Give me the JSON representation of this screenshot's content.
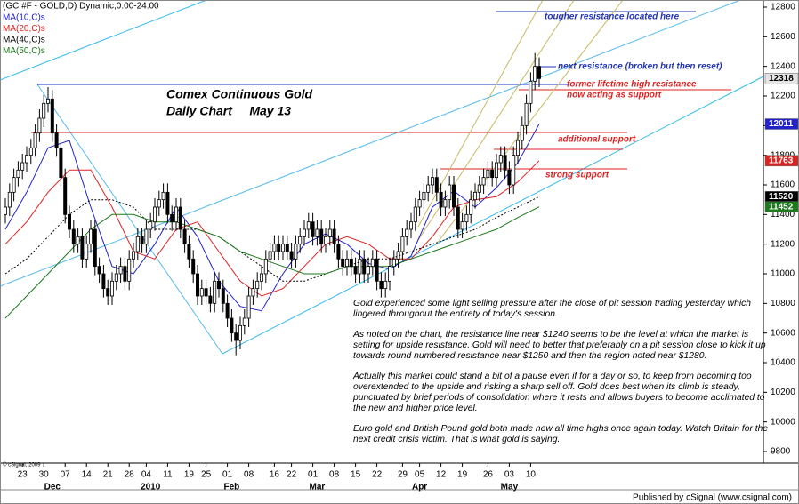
{
  "chart_data": {
    "type": "candlestick",
    "header": "(GC #F - GOLD,D) Dynamic,0:00-24:00",
    "title": "Comex Continuous Gold",
    "subtitle": "Daily Chart     May 13",
    "categories": [
      null,
      null,
      null,
      null,
      "23",
      null,
      null,
      null,
      null,
      "30",
      null,
      null,
      null,
      null,
      "07",
      null,
      null,
      null,
      null,
      "14",
      null,
      null,
      null,
      null,
      "21",
      null,
      null,
      null,
      null,
      "28",
      null,
      null,
      null,
      "04",
      null,
      null,
      null,
      null,
      "11",
      null,
      null,
      null,
      null,
      "19",
      null,
      null,
      null,
      "25",
      null,
      null,
      null,
      null,
      "01",
      null,
      null,
      null,
      null,
      "08",
      null,
      null,
      null,
      null,
      null,
      "16",
      null,
      null,
      null,
      "22",
      null,
      null,
      null,
      null,
      "01",
      null,
      null,
      null,
      null,
      "08",
      null,
      null,
      null,
      null,
      "15",
      null,
      null,
      null,
      null,
      "22",
      null,
      null,
      null,
      null,
      null,
      "29",
      null,
      null,
      null,
      "05",
      null,
      null,
      null,
      null,
      "12",
      null,
      null,
      null,
      null,
      "19",
      null,
      null,
      null,
      null,
      null,
      "26",
      null,
      null,
      null,
      null,
      "03",
      null,
      null,
      null,
      null,
      "10",
      null,
      null
    ],
    "month_labels": [
      null,
      null,
      null,
      null,
      null,
      null,
      null,
      null,
      null,
      null,
      null,
      "Dec",
      null,
      null,
      null,
      null,
      null,
      null,
      null,
      null,
      null,
      null,
      null,
      null,
      null,
      null,
      null,
      null,
      null,
      null,
      null,
      null,
      null,
      null,
      "2010",
      null,
      null,
      null,
      null,
      null,
      null,
      null,
      null,
      null,
      null,
      null,
      null,
      null,
      null,
      null,
      null,
      null,
      null,
      "Feb",
      null,
      null,
      null,
      null,
      null,
      null,
      null,
      null,
      null,
      null,
      null,
      null,
      null,
      null,
      null,
      null,
      null,
      null,
      null,
      "Mar",
      null,
      null,
      null,
      null,
      null,
      null,
      null,
      null,
      null,
      null,
      null,
      null,
      null,
      null,
      null,
      null,
      null,
      null,
      null,
      null,
      null,
      null,
      null,
      "Apr",
      null,
      null,
      null,
      null,
      null,
      null,
      null,
      null,
      null,
      null,
      null,
      null,
      null,
      null,
      null,
      null,
      null,
      null,
      null,
      null,
      "May",
      null,
      null,
      null,
      null,
      null,
      null,
      null
    ],
    "open": [
      11400,
      11450,
      11550,
      11650,
      11700,
      11750,
      11800,
      11850,
      11950,
      12050,
      12150,
      12180,
      11950,
      11850,
      11650,
      11400,
      11300,
      11200,
      11250,
      11100,
      11200,
      11300,
      11050,
      11000,
      10900,
      10850,
      10950,
      11000,
      11050,
      10950,
      11100,
      11150,
      11250,
      11200,
      11300,
      11350,
      11450,
      11500,
      11550,
      11400,
      11350,
      11450,
      11300,
      11200,
      11100,
      11000,
      10850,
      10900,
      10850,
      10800,
      10950,
      10900,
      10800,
      10700,
      10600,
      10550,
      10650,
      10700,
      10850,
      10900,
      10950,
      11000,
      11100,
      11150,
      11200,
      11150,
      11200,
      11150,
      11100,
      11200,
      11250,
      11300,
      11350,
      11250,
      11300,
      11200,
      11250,
      11300,
      11200,
      11100,
      11050,
      11100,
      11050,
      11000,
      11100,
      11000,
      11050,
      11100,
      10950,
      10900,
      10950,
      11050,
      11100,
      11150,
      11250,
      11300,
      11350,
      11450,
      11500,
      11550,
      11600,
      11650,
      11550,
      11450,
      11500,
      11600,
      11450,
      11300,
      11350,
      11400,
      11500,
      11550,
      11600,
      11650,
      11700,
      11650,
      11750,
      11800,
      11700,
      11600,
      11800,
      11900,
      12000,
      12150,
      12300,
      12400
    ],
    "high": [
      11510,
      11610,
      11710,
      11760,
      11810,
      11860,
      11910,
      12010,
      12110,
      12210,
      12260,
      12240,
      12010,
      11910,
      11710,
      11460,
      11360,
      11310,
      11310,
      11260,
      11360,
      11360,
      11110,
      11060,
      10960,
      11010,
      11060,
      11110,
      11110,
      11160,
      11210,
      11310,
      11310,
      11360,
      11410,
      11510,
      11560,
      11610,
      11610,
      11460,
      11510,
      11510,
      11360,
      11260,
      11160,
      11060,
      10960,
      10960,
      10910,
      11010,
      11010,
      10960,
      10860,
      10760,
      10660,
      10710,
      10760,
      10910,
      10960,
      11010,
      11060,
      11160,
      11210,
      11260,
      11260,
      11260,
      11260,
      11210,
      11260,
      11310,
      11360,
      11410,
      11410,
      11360,
      11360,
      11310,
      11360,
      11360,
      11260,
      11160,
      11160,
      11160,
      11110,
      11160,
      11160,
      11110,
      11160,
      11160,
      11010,
      11010,
      11110,
      11160,
      11210,
      11310,
      11360,
      11410,
      11510,
      11560,
      11610,
      11660,
      11710,
      11710,
      11610,
      11560,
      11660,
      11660,
      11510,
      11410,
      11460,
      11560,
      11610,
      11660,
      11710,
      11760,
      11760,
      11810,
      11860,
      11860,
      11760,
      11860,
      11960,
      12060,
      12210,
      12360,
      12490,
      12460
    ],
    "low": [
      11340,
      11390,
      11490,
      11590,
      11640,
      11690,
      11740,
      11790,
      11890,
      11990,
      12090,
      11890,
      11790,
      11590,
      11340,
      11240,
      11140,
      11140,
      11040,
      11040,
      11140,
      10990,
      10940,
      10840,
      10790,
      10790,
      10890,
      10940,
      10890,
      10890,
      11040,
      11090,
      11140,
      11140,
      11240,
      11290,
      11390,
      11440,
      11340,
      11290,
      11290,
      11240,
      11140,
      11040,
      10940,
      10790,
      10790,
      10790,
      10740,
      10740,
      10840,
      10740,
      10640,
      10540,
      10450,
      10490,
      10590,
      10640,
      10790,
      10840,
      10890,
      10940,
      11040,
      11090,
      11090,
      11090,
      11090,
      11040,
      11040,
      11140,
      11190,
      11240,
      11190,
      11190,
      11140,
      11140,
      11190,
      11140,
      11040,
      10990,
      10990,
      10990,
      10940,
      10940,
      10940,
      10940,
      10990,
      10890,
      10840,
      10840,
      10890,
      10990,
      11040,
      11090,
      11190,
      11240,
      11290,
      11390,
      11440,
      11490,
      11540,
      11490,
      11390,
      11390,
      11440,
      11390,
      11240,
      11240,
      11290,
      11340,
      11440,
      11490,
      11540,
      11590,
      11590,
      11590,
      11690,
      11640,
      11540,
      11540,
      11740,
      11840,
      11940,
      12090,
      12240,
      12260
    ],
    "close": [
      11450,
      11550,
      11650,
      11700,
      11750,
      11800,
      11850,
      11950,
      12050,
      12150,
      12180,
      11950,
      11850,
      11650,
      11400,
      11300,
      11200,
      11250,
      11100,
      11200,
      11300,
      11050,
      11000,
      10900,
      10850,
      10950,
      11000,
      11050,
      10950,
      11100,
      11150,
      11250,
      11200,
      11300,
      11350,
      11450,
      11500,
      11550,
      11400,
      11350,
      11450,
      11300,
      11200,
      11100,
      11000,
      10850,
      10900,
      10850,
      10800,
      10950,
      10900,
      10800,
      10700,
      10600,
      10550,
      10650,
      10700,
      10850,
      10900,
      10950,
      11000,
      11100,
      11150,
      11200,
      11150,
      11200,
      11150,
      11100,
      11200,
      11250,
      11300,
      11350,
      11250,
      11300,
      11200,
      11250,
      11300,
      11200,
      11100,
      11050,
      11100,
      11050,
      11000,
      11100,
      11000,
      11050,
      11100,
      10950,
      10900,
      10950,
      11050,
      11100,
      11150,
      11250,
      11300,
      11350,
      11450,
      11500,
      11550,
      11600,
      11650,
      11550,
      11450,
      11500,
      11600,
      11450,
      11300,
      11350,
      11400,
      11500,
      11550,
      11600,
      11650,
      11700,
      11650,
      11750,
      11800,
      11700,
      11600,
      11800,
      11900,
      12000,
      12150,
      12300,
      12400,
      12318
    ],
    "up_color": "#ffffff",
    "down_color": "#000000",
    "series": [
      {
        "name": "MA(10,C)s",
        "color": "#2222cc",
        "dash": false,
        "x": [
          0,
          5,
          10,
          15,
          20,
          25,
          30,
          35,
          40,
          45,
          50,
          55,
          60,
          65,
          70,
          75,
          80,
          85,
          90,
          95,
          100,
          105,
          110,
          115,
          120,
          125
        ],
        "values": [
          11300,
          11550,
          11850,
          11900,
          11450,
          11050,
          11000,
          11200,
          11450,
          11250,
          10950,
          10780,
          10750,
          11000,
          11200,
          11270,
          11200,
          11070,
          11030,
          11120,
          11450,
          11560,
          11450,
          11580,
          11750,
          12011
        ]
      },
      {
        "name": "MA(20,C)s",
        "color": "#dd2222",
        "dash": false,
        "x": [
          0,
          5,
          10,
          15,
          20,
          25,
          30,
          35,
          40,
          45,
          50,
          55,
          60,
          65,
          70,
          75,
          80,
          85,
          90,
          95,
          100,
          105,
          110,
          115,
          120,
          125
        ],
        "values": [
          11200,
          11350,
          11550,
          11700,
          11700,
          11450,
          11150,
          11100,
          11300,
          11350,
          11150,
          10950,
          10850,
          10900,
          11050,
          11200,
          11250,
          11200,
          11100,
          11100,
          11250,
          11450,
          11500,
          11520,
          11620,
          11763
        ]
      },
      {
        "name": "MA(40,C)s",
        "color": "#000000",
        "dash": true,
        "x": [
          0,
          5,
          10,
          15,
          20,
          25,
          30,
          35,
          40,
          45,
          50,
          55,
          60,
          65,
          70,
          75,
          80,
          85,
          90,
          95,
          100,
          105,
          110,
          115,
          120,
          125
        ],
        "values": [
          11000,
          11100,
          11250,
          11400,
          11500,
          11500,
          11450,
          11300,
          11300,
          11300,
          11250,
          11150,
          11050,
          10950,
          10950,
          11000,
          11050,
          11100,
          11100,
          11150,
          11200,
          11250,
          11300,
          11380,
          11450,
          11520
        ]
      },
      {
        "name": "MA(50,C)s",
        "color": "#1c7a1c",
        "dash": false,
        "x": [
          0,
          5,
          10,
          15,
          20,
          25,
          30,
          35,
          40,
          45,
          50,
          55,
          60,
          65,
          70,
          75,
          80,
          85,
          90,
          95,
          100,
          105,
          110,
          115,
          120,
          125
        ],
        "values": [
          10700,
          10850,
          11000,
          11150,
          11300,
          11400,
          11400,
          11350,
          11350,
          11300,
          11250,
          11150,
          11100,
          11050,
          11000,
          11000,
          11050,
          11050,
          11050,
          11100,
          11150,
          11200,
          11250,
          11300,
          11380,
          11452
        ]
      }
    ],
    "ylim": [
      9800,
      12800
    ],
    "yticks": [
      9800,
      10000,
      10200,
      10400,
      10600,
      10800,
      11000,
      11200,
      11400,
      11600,
      11800,
      12000,
      12200,
      12400,
      12600,
      12800
    ],
    "grid": false,
    "annotations": [
      {
        "text": "tougher resistance located here",
        "color": "#2233bb"
      },
      {
        "text": "next resistance (broken but then reset)",
        "color": "#2233bb"
      },
      {
        "text": "former lifetime high resistance",
        "color": "#dd2222"
      },
      {
        "text": "now acting as support",
        "color": "#dd2222"
      },
      {
        "text": "additional support",
        "color": "#dd2222"
      },
      {
        "text": "strong support",
        "color": "#dd2222"
      }
    ],
    "commentary": [
      "Gold experienced some light selling pressure after the close of pit session trading yesterday which lingered throughout the entirety of today's session.",
      "As noted on the chart, the resistance line near $1240 seems to be the level at which the market is setting for upside resistance. Gold will need to better that preferably on a pit session close to kick it up towards round numbered resistance near $1250 and then the region noted near $1280.",
      "Actually this market could stand a bit of a pause even if for a day or so, to keep from becoming too overextended to the upside and risking a sharp sell off. Gold does best when its climb is steady, punctuated by brief periods of consolidation where it rests and allows buyers to become acclimated to the new and higher price level.",
      "Euro gold and British Pound gold both made new all time highs once again today. Watch Britain for the next credit crisis victim. That is what gold is saying."
    ],
    "copyright": "© cSignal, 2009",
    "publisher": "Published by cSignal (www.csignal.com)"
  }
}
